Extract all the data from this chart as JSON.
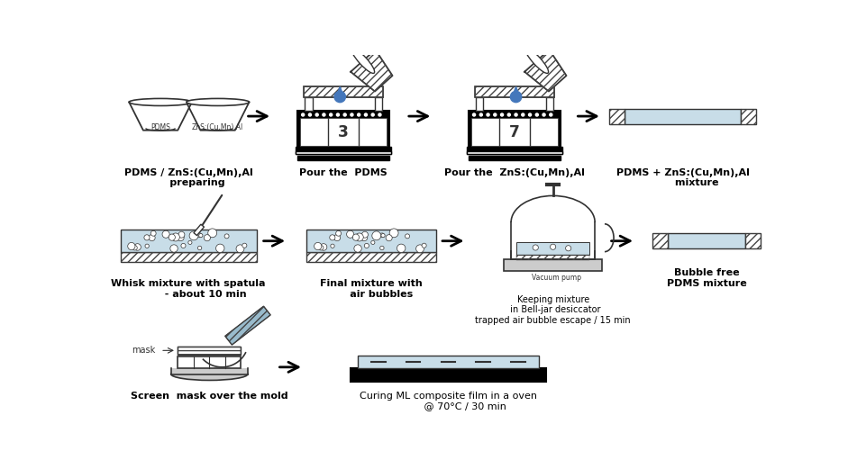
{
  "bg_color": "#ffffff",
  "light_blue": "#c8dde8",
  "hatch_color": "#444444",
  "black": "#000000",
  "dark_gray": "#333333",
  "mid_gray": "#888888",
  "light_gray": "#cccccc",
  "drop_blue": "#4477bb",
  "mask_blue": "#99bbcc",
  "labels": {
    "step1": "PDMS / ZnS:(Cu,Mn),Al\n     preparing",
    "step2": "Pour the  PDMS",
    "step3": "Pour the  ZnS:(Cu,Mn),Al",
    "step4": "PDMS + ZnS:(Cu,Mn),Al\n        mixture",
    "step5": "Whisk mixture with spatula\n          - about 10 min",
    "step6": "Final mixture with\n      air bubbles",
    "step7": "Keeping mixture\n  in Bell-jar desiccator\ntrapped air bubble escape / 15 min",
    "step8": "Bubble free\nPDMS mixture",
    "step9": "Screen  mask over the mold",
    "step10": "Curing ML composite film in a oven\n           @ 70°C / 30 min"
  }
}
